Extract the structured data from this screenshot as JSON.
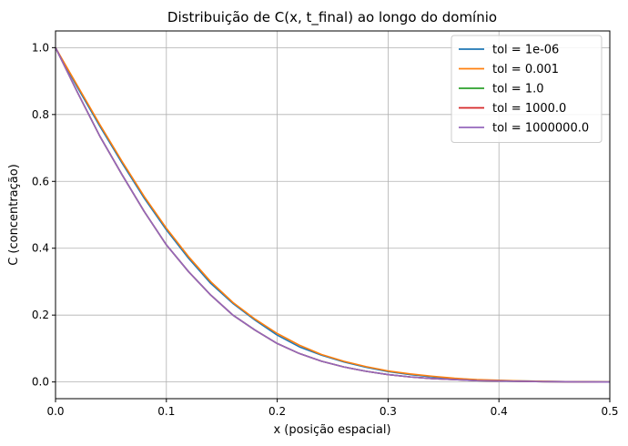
{
  "chart_data": {
    "type": "line",
    "title": "Distribuição de C(x, t_final) ao longo do domínio",
    "xlabel": "x (posição espacial)",
    "ylabel": "C (concentração)",
    "xlim": [
      0.0,
      0.5
    ],
    "ylim": [
      -0.05,
      1.05
    ],
    "xticks": [
      0.0,
      0.1,
      0.2,
      0.3,
      0.4,
      0.5
    ],
    "xtick_labels": [
      "0.0",
      "0.1",
      "0.2",
      "0.3",
      "0.4",
      "0.5"
    ],
    "yticks": [
      0.0,
      0.2,
      0.4,
      0.6,
      0.8,
      1.0
    ],
    "ytick_labels": [
      "0.0",
      "0.2",
      "0.4",
      "0.6",
      "0.8",
      "1.0"
    ],
    "grid": true,
    "legend_position": "top-right",
    "x": [
      0.0,
      0.02,
      0.04,
      0.06,
      0.08,
      0.1,
      0.12,
      0.14,
      0.16,
      0.18,
      0.2,
      0.22,
      0.24,
      0.26,
      0.28,
      0.3,
      0.32,
      0.34,
      0.36,
      0.38,
      0.4,
      0.42,
      0.44,
      0.46,
      0.48,
      0.5
    ],
    "series": [
      {
        "name": "tol = 1e-06",
        "color": "#1f77b4",
        "values": [
          1.0,
          0.88,
          0.765,
          0.655,
          0.55,
          0.455,
          0.37,
          0.295,
          0.235,
          0.185,
          0.14,
          0.105,
          0.08,
          0.06,
          0.044,
          0.031,
          0.022,
          0.015,
          0.01,
          0.006,
          0.004,
          0.003,
          0.002,
          0.001,
          0.0005,
          0.0
        ]
      },
      {
        "name": "tol = 0.001",
        "color": "#ff7f0e",
        "values": [
          1.0,
          0.885,
          0.77,
          0.66,
          0.555,
          0.46,
          0.375,
          0.3,
          0.238,
          0.188,
          0.145,
          0.11,
          0.082,
          0.062,
          0.046,
          0.033,
          0.024,
          0.017,
          0.011,
          0.007,
          0.005,
          0.003,
          0.002,
          0.001,
          0.0005,
          0.0
        ]
      },
      {
        "name": "tol = 1.0",
        "color": "#2ca02c",
        "values": [
          1.0,
          0.865,
          0.735,
          0.62,
          0.51,
          0.41,
          0.33,
          0.26,
          0.2,
          0.155,
          0.115,
          0.085,
          0.062,
          0.045,
          0.032,
          0.022,
          0.015,
          0.01,
          0.007,
          0.004,
          0.003,
          0.002,
          0.001,
          0.0005,
          0.0002,
          0.0
        ]
      },
      {
        "name": "tol = 1000.0",
        "color": "#d62728",
        "values": [
          1.0,
          0.865,
          0.735,
          0.62,
          0.51,
          0.41,
          0.33,
          0.26,
          0.2,
          0.155,
          0.115,
          0.085,
          0.062,
          0.045,
          0.032,
          0.022,
          0.015,
          0.01,
          0.007,
          0.004,
          0.003,
          0.002,
          0.001,
          0.0005,
          0.0002,
          0.0
        ]
      },
      {
        "name": "tol = 1000000.0",
        "color": "#9467bd",
        "values": [
          1.0,
          0.865,
          0.735,
          0.62,
          0.51,
          0.41,
          0.33,
          0.26,
          0.2,
          0.155,
          0.115,
          0.085,
          0.062,
          0.045,
          0.032,
          0.022,
          0.015,
          0.01,
          0.007,
          0.004,
          0.003,
          0.002,
          0.001,
          0.0005,
          0.0002,
          0.0
        ]
      }
    ]
  }
}
